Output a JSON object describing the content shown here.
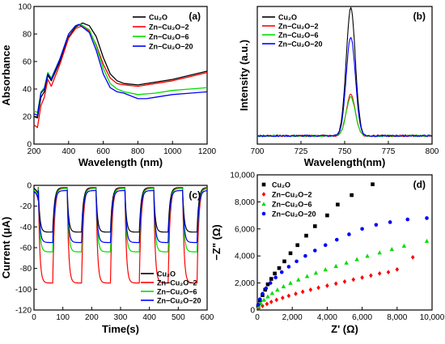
{
  "chart_data": [
    {
      "panel": "(a)",
      "type": "line",
      "xlabel": "Wavelength (nm)",
      "ylabel": "Absorbance",
      "xlim": [
        200,
        1200
      ],
      "ylim": [
        0,
        100
      ],
      "xticks": [
        200,
        400,
        600,
        800,
        1000,
        1200
      ],
      "yticks": [
        0,
        20,
        40,
        60,
        80,
        100
      ],
      "legend": "top-right",
      "series": [
        {
          "name": "Cu₂O",
          "color": "#000000",
          "points": [
            [
              200,
              20
            ],
            [
              220,
              19
            ],
            [
              240,
              34
            ],
            [
              260,
              38
            ],
            [
              280,
              50
            ],
            [
              300,
              46
            ],
            [
              350,
              60
            ],
            [
              400,
              78
            ],
            [
              440,
              85
            ],
            [
              480,
              88
            ],
            [
              520,
              86
            ],
            [
              560,
              78
            ],
            [
              600,
              63
            ],
            [
              640,
              51
            ],
            [
              680,
              46
            ],
            [
              720,
              44
            ],
            [
              800,
              43
            ],
            [
              900,
              45
            ],
            [
              1000,
              47
            ],
            [
              1100,
              50
            ],
            [
              1200,
              53
            ]
          ]
        },
        {
          "name": "Zn−Cu₂O−2",
          "color": "#ff0000",
          "points": [
            [
              200,
              14
            ],
            [
              220,
              12
            ],
            [
              240,
              28
            ],
            [
              260,
              34
            ],
            [
              280,
              47
            ],
            [
              300,
              42
            ],
            [
              350,
              58
            ],
            [
              400,
              77
            ],
            [
              440,
              84
            ],
            [
              480,
              86
            ],
            [
              520,
              82
            ],
            [
              560,
              72
            ],
            [
              600,
              58
            ],
            [
              640,
              48
            ],
            [
              680,
              44
            ],
            [
              720,
              43
            ],
            [
              800,
              42
            ],
            [
              900,
              44
            ],
            [
              1000,
              46
            ],
            [
              1100,
              49
            ],
            [
              1200,
              52
            ]
          ]
        },
        {
          "name": "Zn−Cu₂O−6",
          "color": "#00dd00",
          "points": [
            [
              200,
              24
            ],
            [
              220,
              23
            ],
            [
              240,
              38
            ],
            [
              260,
              41
            ],
            [
              280,
              52
            ],
            [
              300,
              48
            ],
            [
              350,
              62
            ],
            [
              400,
              80
            ],
            [
              440,
              86
            ],
            [
              470,
              87
            ],
            [
              520,
              83
            ],
            [
              560,
              71
            ],
            [
              600,
              55
            ],
            [
              640,
              44
            ],
            [
              680,
              40
            ],
            [
              720,
              38
            ],
            [
              800,
              36
            ],
            [
              900,
              37
            ],
            [
              1000,
              39
            ],
            [
              1100,
              40
            ],
            [
              1200,
              41
            ]
          ]
        },
        {
          "name": "Zn−Cu₂O−20",
          "color": "#0000ff",
          "points": [
            [
              200,
              22
            ],
            [
              220,
              21
            ],
            [
              240,
              37
            ],
            [
              260,
              40
            ],
            [
              280,
              51
            ],
            [
              300,
              47
            ],
            [
              350,
              62
            ],
            [
              400,
              80
            ],
            [
              440,
              86
            ],
            [
              460,
              87
            ],
            [
              520,
              81
            ],
            [
              560,
              68
            ],
            [
              600,
              51
            ],
            [
              640,
              41
            ],
            [
              680,
              38
            ],
            [
              720,
              37
            ],
            [
              800,
              33
            ],
            [
              850,
              33
            ],
            [
              900,
              34
            ],
            [
              1000,
              36
            ],
            [
              1100,
              37
            ],
            [
              1200,
              38
            ]
          ]
        }
      ]
    },
    {
      "panel": "(b)",
      "type": "line",
      "xlabel": "Wavelength(nm)",
      "ylabel": "Intensity (a.u.)",
      "xlim": [
        700,
        800
      ],
      "ylim": [
        0,
        1
      ],
      "xticks": [
        700,
        725,
        750,
        775,
        800
      ],
      "yticks": [],
      "legend": "top-left",
      "series": [
        {
          "name": "Cu₂O",
          "color": "#000000",
          "peak": 0.93
        },
        {
          "name": "Zn−Cu₂O−2",
          "color": "#ff0000",
          "peak": 0.3
        },
        {
          "name": "Zn−Cu₂O−6",
          "color": "#00dd00",
          "peak": 0.28
        },
        {
          "name": "Zn−Cu₂O−20",
          "color": "#0000ff",
          "peak": 0.72
        }
      ],
      "peak_center": 753.5,
      "peak_width": 2.6,
      "baseline": 0.06
    },
    {
      "panel": "(c)",
      "type": "line",
      "xlabel": "Time(s)",
      "ylabel": "Current (μA)",
      "xlim": [
        0,
        600
      ],
      "ylim": [
        -120,
        0
      ],
      "xticks": [
        0,
        100,
        200,
        300,
        400,
        500,
        600
      ],
      "yticks": [
        0,
        -20,
        -40,
        -60,
        -80,
        -100,
        -120
      ],
      "legend": "bottom-right",
      "cycle_starts": [
        15,
        115,
        215,
        315,
        415,
        515
      ],
      "cycle_period": 100,
      "series": [
        {
          "name": "Cu₂O",
          "color": "#000000",
          "on_level": -45,
          "off_level": -2
        },
        {
          "name": "Zn−Cu₂O−2",
          "color": "#ff0000",
          "on_level": -94,
          "off_level": -2
        },
        {
          "name": "Zn−Cu₂O−6",
          "color": "#00dd00",
          "on_level": -64,
          "off_level": -3
        },
        {
          "name": "Zn−Cu₂O−20",
          "color": "#0000ff",
          "on_level": -55,
          "off_level": -5
        }
      ]
    },
    {
      "panel": "(d)",
      "type": "scatter",
      "xlabel": "Z'  (Ω)",
      "ylabel": "−Z\"  (Ω)",
      "xlim": [
        0,
        10000
      ],
      "ylim": [
        0,
        10000
      ],
      "xticks": [
        0,
        2000,
        4000,
        6000,
        8000,
        10000
      ],
      "yticks": [
        0,
        2000,
        4000,
        6000,
        8000,
        10000
      ],
      "xtick_labels": [
        "0",
        "2,000",
        "4,000",
        "6,000",
        "8,000",
        "10,000"
      ],
      "ytick_labels": [
        "0",
        "2,000",
        "4,000",
        "6,000",
        "8,000",
        "10,000"
      ],
      "legend": "top-left",
      "series": [
        {
          "name": "Cu₂O",
          "color": "#000000",
          "marker": "square",
          "points": [
            [
              50,
              300
            ],
            [
              150,
              700
            ],
            [
              300,
              1100
            ],
            [
              450,
              1500
            ],
            [
              600,
              1900
            ],
            [
              800,
              2300
            ],
            [
              1000,
              2700
            ],
            [
              1250,
              3100
            ],
            [
              1550,
              3600
            ],
            [
              1900,
              4200
            ],
            [
              2300,
              4800
            ],
            [
              2800,
              5500
            ],
            [
              3300,
              6200
            ],
            [
              4000,
              7000
            ],
            [
              4600,
              7800
            ],
            [
              5400,
              8500
            ],
            [
              6600,
              9300
            ]
          ]
        },
        {
          "name": "Zn−Cu₂O−2",
          "color": "#ff0000",
          "marker": "diamond",
          "points": [
            [
              100,
              150
            ],
            [
              300,
              300
            ],
            [
              550,
              450
            ],
            [
              800,
              600
            ],
            [
              1100,
              750
            ],
            [
              1450,
              900
            ],
            [
              1800,
              1050
            ],
            [
              2200,
              1200
            ],
            [
              2600,
              1350
            ],
            [
              3050,
              1500
            ],
            [
              3500,
              1650
            ],
            [
              4000,
              1800
            ],
            [
              4500,
              1950
            ],
            [
              5000,
              2100
            ],
            [
              5500,
              2250
            ],
            [
              6000,
              2400
            ],
            [
              6500,
              2550
            ],
            [
              7000,
              2700
            ],
            [
              7500,
              2800
            ],
            [
              8000,
              3000
            ],
            [
              8900,
              3900
            ]
          ]
        },
        {
          "name": "Zn−Cu₂O−6",
          "color": "#00dd00",
          "marker": "triangle",
          "points": [
            [
              80,
              250
            ],
            [
              200,
              500
            ],
            [
              380,
              750
            ],
            [
              600,
              1000
            ],
            [
              850,
              1250
            ],
            [
              1150,
              1500
            ],
            [
              1500,
              1750
            ],
            [
              1900,
              2000
            ],
            [
              2350,
              2250
            ],
            [
              2850,
              2500
            ],
            [
              3350,
              2750
            ],
            [
              3900,
              3000
            ],
            [
              4500,
              3250
            ],
            [
              5100,
              3500
            ],
            [
              5700,
              3750
            ],
            [
              6300,
              4000
            ],
            [
              7000,
              4250
            ],
            [
              7700,
              4500
            ],
            [
              8400,
              4750
            ],
            [
              9700,
              5100
            ]
          ]
        },
        {
          "name": "Zn−Cu₂O−20",
          "color": "#0000ff",
          "marker": "circle",
          "points": [
            [
              60,
              400
            ],
            [
              150,
              800
            ],
            [
              300,
              1200
            ],
            [
              500,
              1600
            ],
            [
              750,
              2000
            ],
            [
              1050,
              2400
            ],
            [
              1400,
              2800
            ],
            [
              1800,
              3200
            ],
            [
              2250,
              3600
            ],
            [
              2750,
              4000
            ],
            [
              3300,
              4400
            ],
            [
              3900,
              4800
            ],
            [
              4550,
              5200
            ],
            [
              5250,
              5600
            ],
            [
              6000,
              6000
            ],
            [
              6800,
              6300
            ],
            [
              7600,
              6500
            ],
            [
              8600,
              6700
            ],
            [
              9700,
              6800
            ]
          ]
        }
      ]
    }
  ]
}
